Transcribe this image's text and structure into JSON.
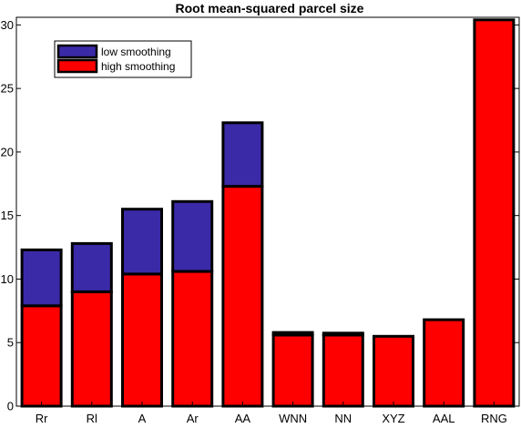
{
  "chart_data": {
    "type": "bar",
    "stacked": true,
    "title": "Root mean-squared parcel size",
    "xlabel": "",
    "ylabel": "",
    "categories": [
      "Rr",
      "Rl",
      "A",
      "Ar",
      "AA",
      "WNN",
      "NN",
      "XYZ",
      "AAL",
      "RNG"
    ],
    "series": [
      {
        "name": "high smoothing",
        "color": "#ff0000",
        "values": [
          7.9,
          9.0,
          10.4,
          10.6,
          17.3,
          5.6,
          5.6,
          5.5,
          6.8,
          30.4
        ]
      },
      {
        "name": "low smoothing",
        "color": "#3a2aa8",
        "values": [
          4.4,
          3.8,
          5.1,
          5.5,
          5.0,
          0.2,
          0.15,
          0,
          0,
          0
        ]
      }
    ],
    "ylim": [
      0,
      30.6
    ],
    "yticks": [
      0,
      5,
      10,
      15,
      20,
      25,
      30
    ],
    "legend_position": "top-left",
    "grid": false
  }
}
